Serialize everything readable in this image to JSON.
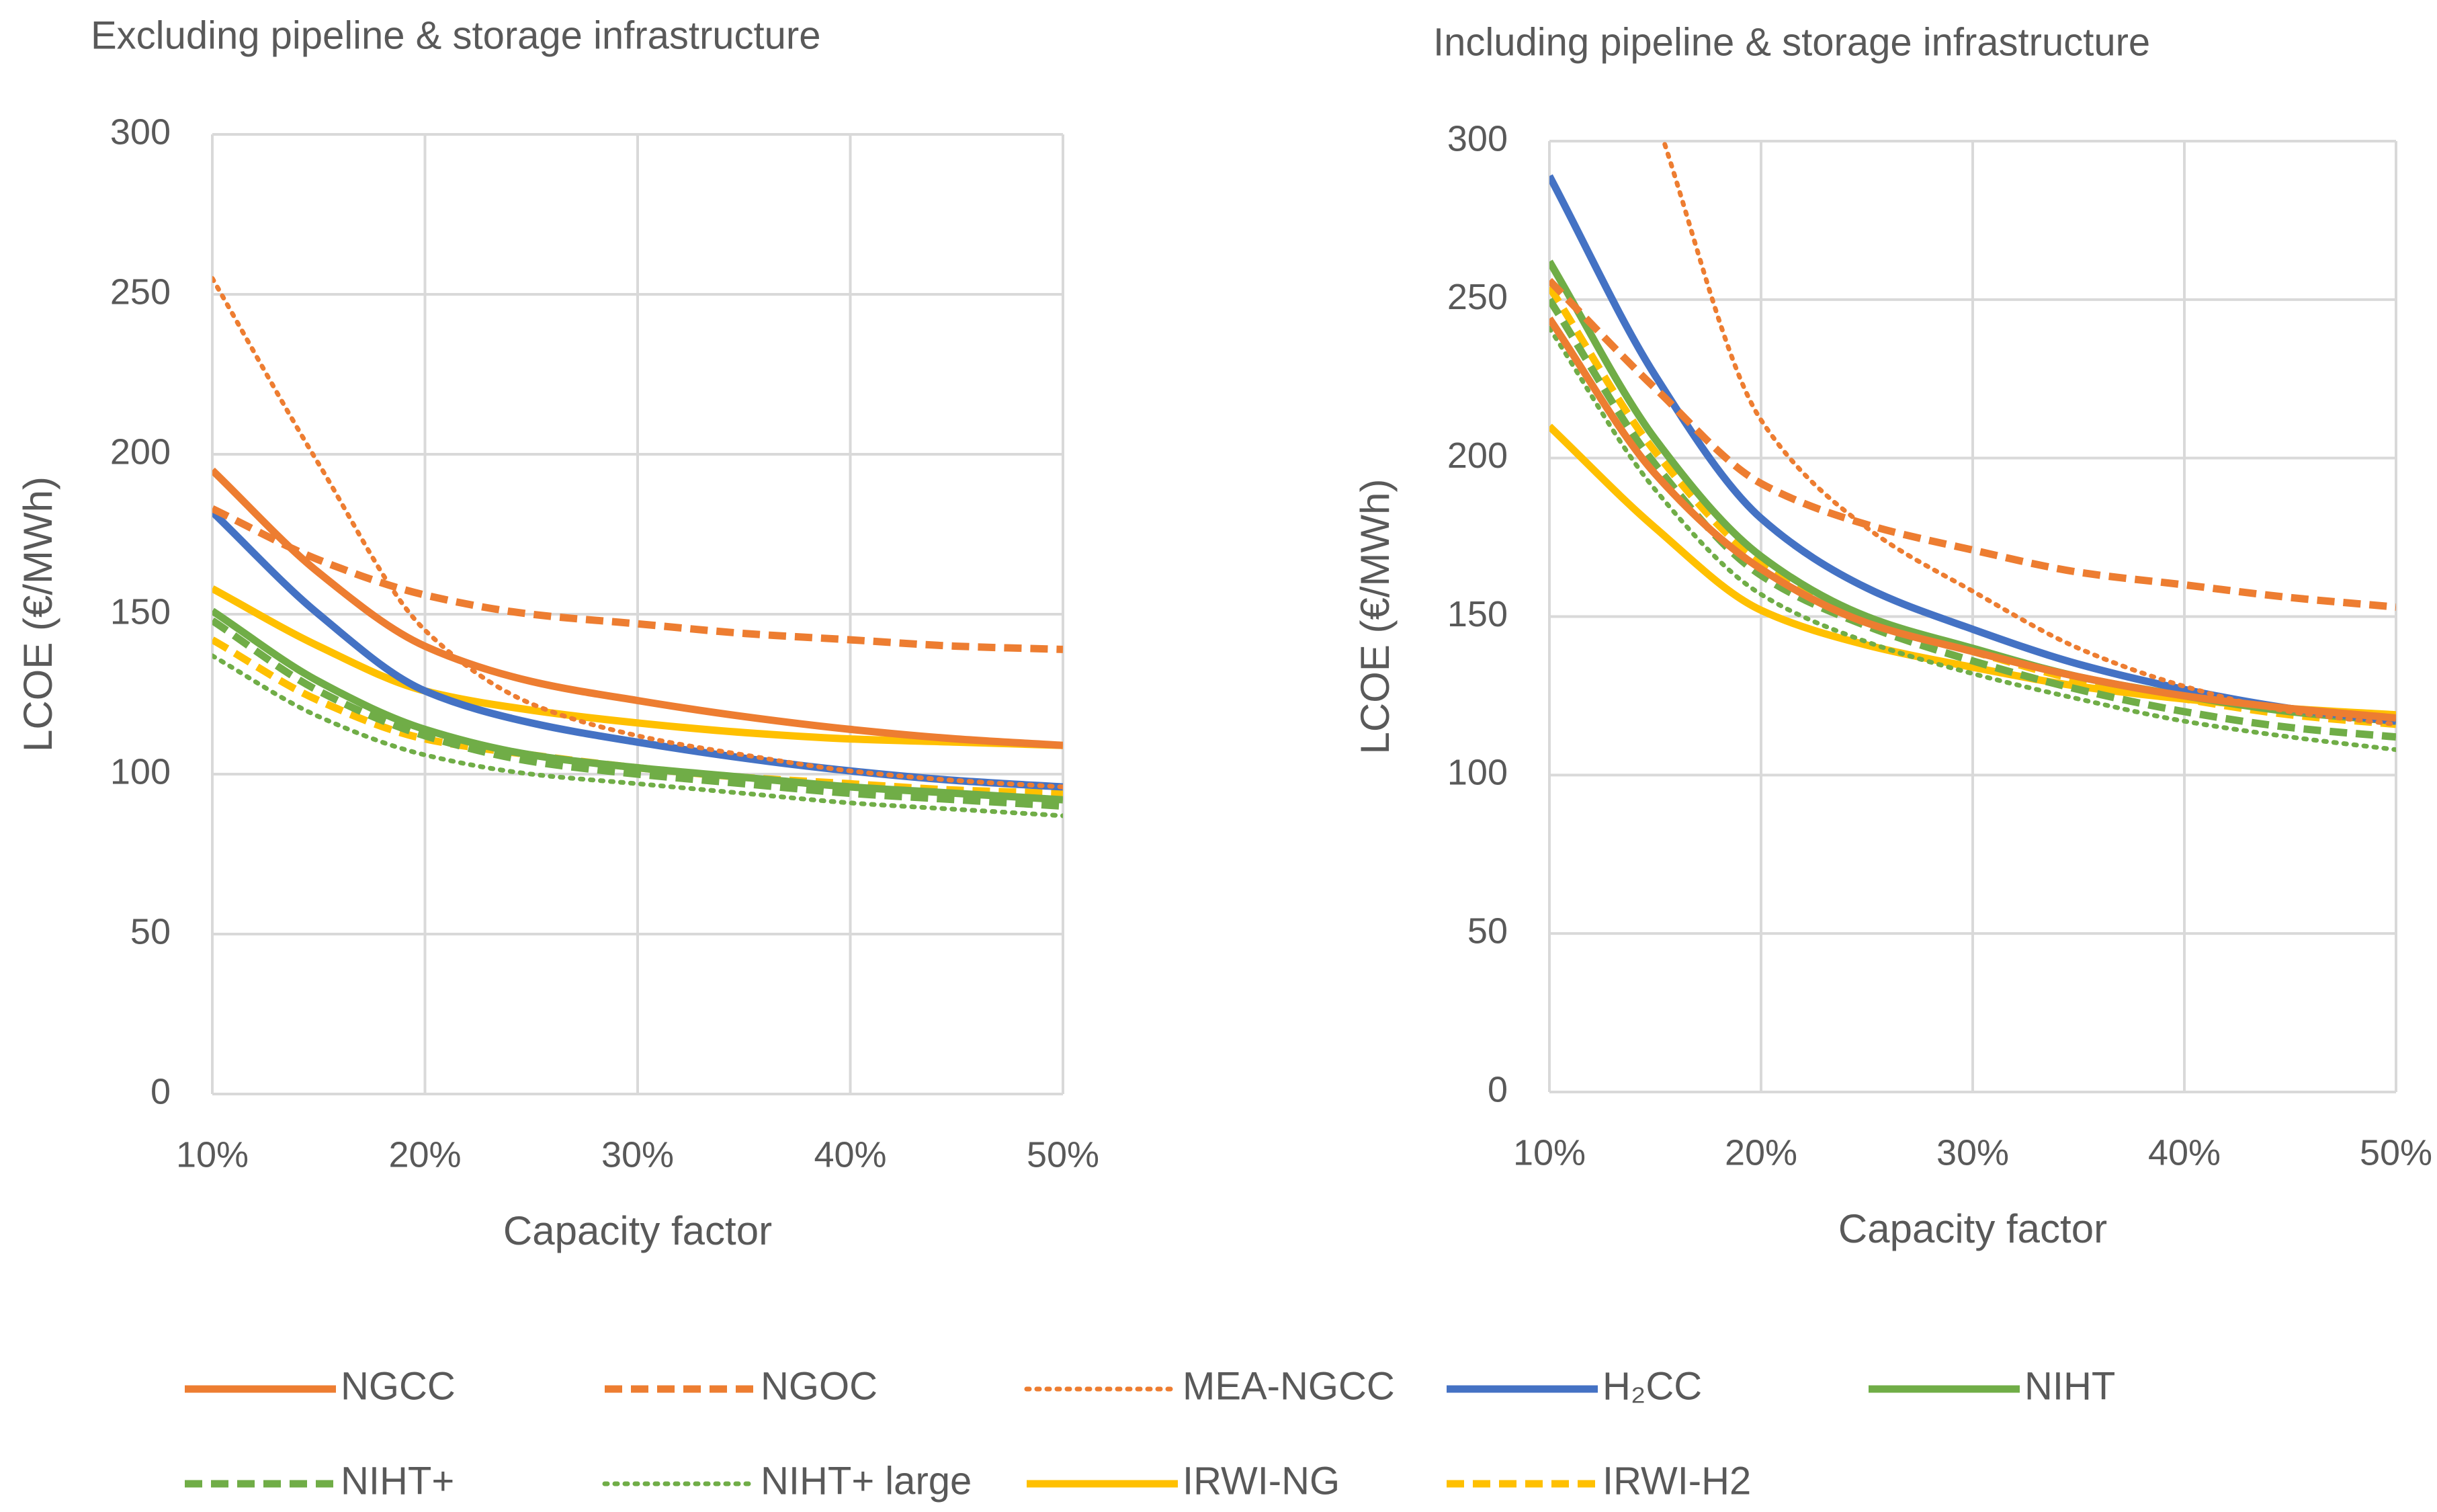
{
  "chart_data": [
    {
      "type": "line",
      "title": "Excluding pipeline & storage infrastructure",
      "xlabel": "Capacity factor",
      "ylabel": "LCOE (€/MWh)",
      "xlim": [
        10,
        50
      ],
      "ylim": [
        0,
        300
      ],
      "x_ticks": [
        10,
        20,
        30,
        40,
        50
      ],
      "x_tick_labels": [
        "10%",
        "20%",
        "30%",
        "40%",
        "50%"
      ],
      "y_ticks": [
        0,
        50,
        100,
        150,
        200,
        250,
        300
      ],
      "y_tick_labels": [
        "0",
        "50",
        "100",
        "150",
        "200",
        "250",
        "300"
      ],
      "grid": true,
      "x": [
        10,
        15,
        20,
        25,
        30,
        35,
        40,
        45,
        50
      ],
      "series": [
        {
          "name": "NGCC",
          "values": [
            195,
            163,
            140,
            129,
            123,
            118,
            114,
            111,
            109
          ]
        },
        {
          "name": "NGOC",
          "values": [
            183,
            167,
            156,
            150,
            147,
            144,
            142,
            140,
            139
          ]
        },
        {
          "name": "MEA-NGCC",
          "values": [
            255,
            197,
            145,
            122,
            112,
            106,
            101,
            98,
            96
          ]
        },
        {
          "name": "H₂CC",
          "values": [
            182,
            150,
            126,
            116,
            110,
            105,
            101,
            98,
            96
          ]
        },
        {
          "name": "NIHT",
          "values": [
            151,
            129,
            114,
            106,
            102,
            99,
            96,
            94,
            92
          ]
        },
        {
          "name": "NIHT+",
          "values": [
            148,
            126,
            112,
            104,
            100,
            97,
            94,
            92,
            90
          ]
        },
        {
          "name": "NIHT+ large",
          "values": [
            137,
            118,
            106,
            100,
            97,
            94,
            91,
            89,
            87
          ]
        },
        {
          "name": "IRWI-NG",
          "values": [
            158,
            140,
            126,
            120,
            116,
            113,
            111,
            110,
            109
          ]
        },
        {
          "name": "IRWI-H2",
          "values": [
            142,
            123,
            111,
            106,
            102,
            99,
            97,
            95,
            94
          ]
        }
      ]
    },
    {
      "type": "line",
      "title": "Including pipeline & storage infrastructure",
      "xlabel": "Capacity factor",
      "ylabel": "LCOE (€/MWh)",
      "xlim": [
        10,
        50
      ],
      "ylim": [
        0,
        300
      ],
      "x_ticks": [
        10,
        20,
        30,
        40,
        50
      ],
      "x_tick_labels": [
        "10%",
        "20%",
        "30%",
        "40%",
        "50%"
      ],
      "y_ticks": [
        0,
        50,
        100,
        150,
        200,
        250,
        300
      ],
      "y_tick_labels": [
        "0",
        "50",
        "100",
        "150",
        "200",
        "250",
        "300"
      ],
      "grid": true,
      "x": [
        10,
        15,
        20,
        25,
        30,
        35,
        40,
        45,
        50
      ],
      "series": [
        {
          "name": "NGCC",
          "values": [
            244,
            195,
            165,
            148,
            139,
            131,
            125,
            121,
            118
          ]
        },
        {
          "name": "NGOC",
          "values": [
            256,
            222,
            192,
            179,
            171,
            164,
            160,
            156,
            153
          ]
        },
        {
          "name": "MEA-NGCC",
          "values": [
            null,
            308,
            212,
            178,
            158,
            140,
            128,
            120,
            116
          ]
        },
        {
          "name": "H₂CC",
          "values": [
            289,
            226,
            181,
            159,
            146,
            135,
            127,
            121,
            117
          ]
        },
        {
          "name": "NIHT",
          "values": [
            262,
            206,
            169,
            150,
            140,
            131,
            125,
            120,
            117
          ]
        },
        {
          "name": "NIHT+",
          "values": [
            250,
            198,
            163,
            147,
            136,
            127,
            120,
            115,
            112
          ]
        },
        {
          "name": "NIHT+ large",
          "values": [
            241,
            190,
            157,
            142,
            132,
            124,
            117,
            112,
            108
          ]
        },
        {
          "name": "IRWI-NG",
          "values": [
            210,
            178,
            152,
            141,
            134,
            128,
            124,
            121,
            119
          ]
        },
        {
          "name": "IRWI-H2",
          "values": [
            254,
            202,
            167,
            149,
            139,
            130,
            124,
            119,
            116
          ]
        }
      ]
    }
  ],
  "legend": {
    "placement": "bottom",
    "items": [
      {
        "name": "NGCC",
        "color": "#ED7D31",
        "style": "solid"
      },
      {
        "name": "NGOC",
        "color": "#ED7D31",
        "style": "dashed"
      },
      {
        "name": "MEA-NGCC",
        "color": "#ED7D31",
        "style": "dotted"
      },
      {
        "name": "H₂CC",
        "color": "#4472C4",
        "style": "solid"
      },
      {
        "name": "NIHT",
        "color": "#70AD47",
        "style": "solid"
      },
      {
        "name": "NIHT+",
        "color": "#70AD47",
        "style": "dashed"
      },
      {
        "name": "NIHT+ large",
        "color": "#70AD47",
        "style": "dotted"
      },
      {
        "name": "IRWI-NG",
        "color": "#FFC000",
        "style": "solid"
      },
      {
        "name": "IRWI-H2",
        "color": "#FFC000",
        "style": "dashed"
      }
    ]
  }
}
